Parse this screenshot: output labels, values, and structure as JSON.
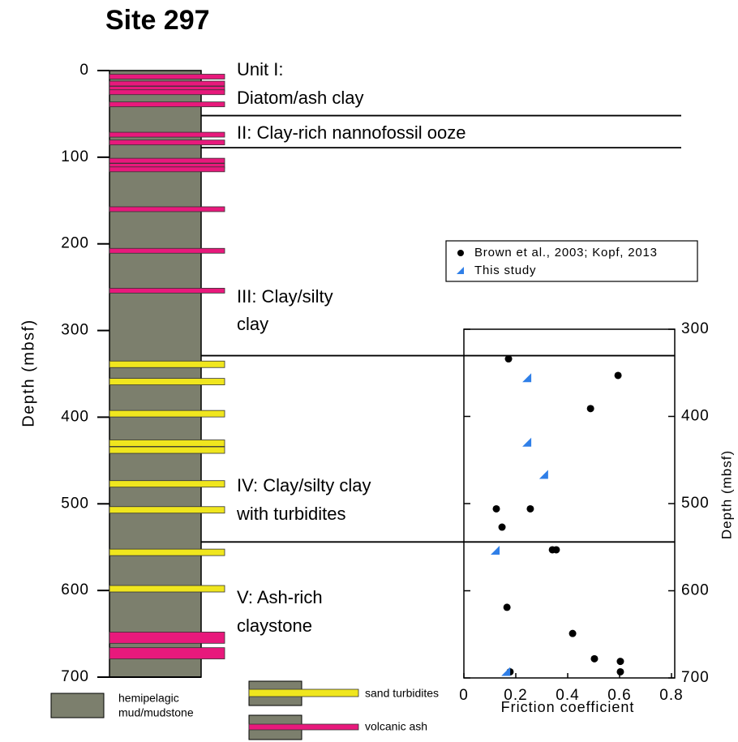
{
  "chart_data": [
    {
      "type": "lithology",
      "title": "Site 297",
      "ylabel": "Depth (mbsf)",
      "ylim": [
        0,
        700
      ],
      "yticks": [
        0,
        100,
        200,
        300,
        400,
        500,
        600,
        700
      ],
      "column_color": "#7c7f6d",
      "units": [
        {
          "label": [
            "Unit I:",
            "Diatom/ash clay"
          ]
        },
        {
          "label": [
            "II: Clay-rich nannofossil ooze"
          ]
        },
        {
          "label": [
            "III: Clay/silty",
            "clay"
          ]
        },
        {
          "label": [
            "IV: Clay/silty clay",
            "with turbidites"
          ]
        },
        {
          "label": [
            "V: Ash-rich",
            "claystone"
          ]
        }
      ],
      "unit_boundaries": [
        52,
        89,
        329,
        544
      ],
      "ash_color": "#e8197c",
      "ash_layers": [
        7,
        15,
        21,
        25,
        39,
        74,
        83,
        104,
        110,
        114,
        160,
        208,
        254
      ],
      "thick_ash_layers": [
        [
          648,
          661
        ],
        [
          666,
          679
        ]
      ],
      "sand_color": "#f0e61e",
      "sand_layers": [
        339,
        359,
        396,
        430,
        438,
        477,
        507,
        556,
        598
      ],
      "legend": {
        "mud": [
          "hemipelagic",
          "mud/mudstone"
        ],
        "sand": "sand turbidites",
        "ash": "volcanic ash"
      }
    },
    {
      "type": "scatter",
      "xlabel": "Friction coefficient",
      "ylabel": "Depth (mbsf)",
      "xlim": [
        0,
        0.8
      ],
      "xticks": [
        0,
        0.2,
        0.4,
        0.6,
        0.8
      ],
      "ylim": [
        300,
        700
      ],
      "yticks": [
        300,
        400,
        500,
        600,
        700
      ],
      "y_inverted": true,
      "series": [
        {
          "name": "Brown et al., 2003; Kopf, 2013",
          "color": "#000000",
          "marker": "circle",
          "x": [
            0.172,
            0.594,
            0.488,
            0.125,
            0.256,
            0.147,
            0.341,
            0.356,
            0.166,
            0.419,
            0.503,
            0.603,
            0.603,
            0.178
          ],
          "values": [
            334,
            353,
            391,
            506,
            506,
            527,
            553,
            553,
            619,
            649,
            678,
            681,
            693,
            693
          ]
        },
        {
          "name": "This study",
          "color": "#2f7fe8",
          "marker": "triangle",
          "x": [
            0.244,
            0.244,
            0.309,
            0.122,
            0.163
          ],
          "values": [
            356,
            430,
            467,
            554,
            693
          ]
        }
      ]
    }
  ]
}
